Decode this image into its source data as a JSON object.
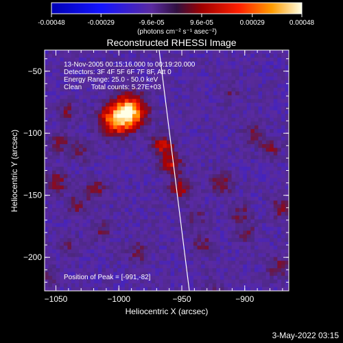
{
  "chart_data": {
    "type": "heatmap",
    "title": "Reconstructed RHESSI Image",
    "xlabel": "Heliocentric X (arcsec)",
    "ylabel": "Heliocentric Y (arcsec)",
    "xlim": [
      -1059,
      -865
    ],
    "ylim": [
      -227,
      -33
    ],
    "xticks": [
      -1050,
      -1000,
      -950,
      -900
    ],
    "yticks": [
      -50,
      -100,
      -150,
      -200
    ],
    "colorbar": {
      "ticks": [
        "-0.00048",
        "-0.00029",
        "-9.6e-05",
        "9.6e-05",
        "0.00029",
        "0.00048"
      ],
      "tick_values": [
        -0.00048,
        -0.00029,
        -9.6e-05,
        9.6e-05,
        0.00029,
        0.00048
      ],
      "range": [
        -0.00048,
        0.00048
      ],
      "unit_label": "(photons cm⁻² s⁻¹ asec⁻²)"
    },
    "annotations": {
      "time": "13-Nov-2005 00:15:16.000 to 00:19:20.000",
      "detectors": "Detectors: 3F 4F 5F 6F 7F 8F, Att 0",
      "energy": "Energy Range: 25.0 - 50.0 keV",
      "clean": "Clean     Total counts: 5.27E+03",
      "peak": "Position of Peak = [-991,-82]"
    },
    "limb_line": {
      "x": [
        -968,
        -944
      ],
      "y": [
        -33,
        -227
      ]
    },
    "peak": {
      "x": -991,
      "y": -82,
      "value": 0.00048
    },
    "hot_spots": [
      {
        "x": -991,
        "y": -82,
        "value": 0.00048
      },
      {
        "x": -1003,
        "y": -90,
        "value": 0.00036
      },
      {
        "x": -965,
        "y": -110,
        "value": 0.00026
      },
      {
        "x": -958,
        "y": -125,
        "value": 0.00024
      },
      {
        "x": -951,
        "y": -145,
        "value": 0.00022
      },
      {
        "x": -1041,
        "y": -83,
        "value": 0.00014
      },
      {
        "x": -1046,
        "y": -108,
        "value": 0.00013
      },
      {
        "x": -1049,
        "y": -140,
        "value": 0.00018
      },
      {
        "x": -1033,
        "y": -158,
        "value": 0.00013
      },
      {
        "x": -1018,
        "y": -145,
        "value": 0.00015
      },
      {
        "x": -1014,
        "y": -178,
        "value": 0.00012
      },
      {
        "x": -985,
        "y": -196,
        "value": 0.00012
      },
      {
        "x": -1040,
        "y": -190,
        "value": 9e-05
      },
      {
        "x": -1055,
        "y": -215,
        "value": 8e-05
      },
      {
        "x": -912,
        "y": -68,
        "value": 9e-05
      },
      {
        "x": -893,
        "y": -100,
        "value": 0.00012
      },
      {
        "x": -880,
        "y": -113,
        "value": 0.00014
      },
      {
        "x": -918,
        "y": -140,
        "value": 0.00017
      },
      {
        "x": -903,
        "y": -165,
        "value": 0.00012
      },
      {
        "x": -871,
        "y": -160,
        "value": 0.00015
      },
      {
        "x": -933,
        "y": -190,
        "value": 0.00012
      },
      {
        "x": -899,
        "y": -180,
        "value": 0.00012
      },
      {
        "x": -873,
        "y": -208,
        "value": 0.00014
      },
      {
        "x": -940,
        "y": -168,
        "value": 0.00011
      },
      {
        "x": -925,
        "y": -225,
        "value": 9e-05
      },
      {
        "x": -1030,
        "y": -115,
        "value": 0.0001
      }
    ]
  },
  "footer": {
    "date": "3-May-2022 03:15"
  }
}
